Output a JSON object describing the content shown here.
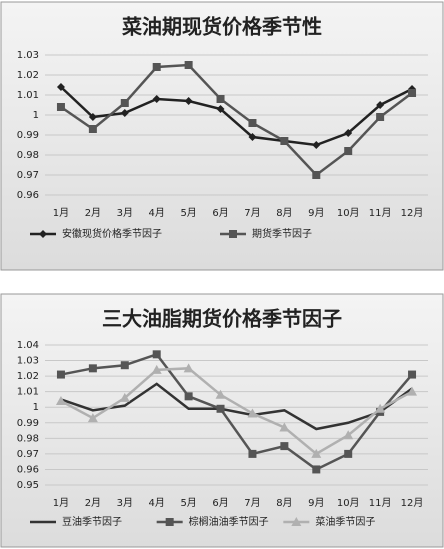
{
  "chart_data": [
    {
      "type": "line",
      "title": "菜油期现货价格季节性",
      "categories": [
        "1月",
        "2月",
        "3月",
        "4月",
        "5月",
        "6月",
        "7月",
        "8月",
        "9月",
        "10月",
        "11月",
        "12月"
      ],
      "ylim": [
        0.96,
        1.03
      ],
      "yticks": [
        0.96,
        0.97,
        0.98,
        0.99,
        1,
        1.01,
        1.02,
        1.03
      ],
      "grid": true,
      "series": [
        {
          "name": "安徽现货价格季节因子",
          "color": "#222222",
          "marker": "diamond",
          "values": [
            1.014,
            0.999,
            1.001,
            1.008,
            1.007,
            1.003,
            0.989,
            0.987,
            0.985,
            0.991,
            1.005,
            1.013
          ]
        },
        {
          "name": "期货季节因子",
          "color": "#555555",
          "marker": "square",
          "values": [
            1.004,
            0.993,
            1.006,
            1.024,
            1.025,
            1.008,
            0.996,
            0.987,
            0.97,
            0.982,
            0.999,
            1.011
          ]
        }
      ]
    },
    {
      "type": "line",
      "title": "三大油脂期货价格季节因子",
      "categories": [
        "1月",
        "2月",
        "3月",
        "4月",
        "5月",
        "6月",
        "7月",
        "8月",
        "9月",
        "10月",
        "11月",
        "12月"
      ],
      "ylim": [
        0.95,
        1.04
      ],
      "yticks": [
        0.95,
        0.96,
        0.97,
        0.98,
        0.99,
        1,
        1.01,
        1.02,
        1.03,
        1.04
      ],
      "grid": true,
      "series": [
        {
          "name": "豆油季节因子",
          "color": "#333333",
          "marker": "none",
          "values": [
            1.005,
            0.998,
            1.001,
            1.015,
            0.999,
            0.999,
            0.995,
            0.998,
            0.986,
            0.99,
            0.997,
            1.012
          ]
        },
        {
          "name": "棕榈油油季节因子",
          "color": "#555555",
          "marker": "square",
          "values": [
            1.021,
            1.025,
            1.027,
            1.034,
            1.007,
            0.999,
            0.97,
            0.975,
            0.96,
            0.97,
            0.997,
            1.021
          ]
        },
        {
          "name": "菜油季节因子",
          "color": "#b0b0b0",
          "marker": "triangle",
          "values": [
            1.004,
            0.993,
            1.006,
            1.024,
            1.025,
            1.008,
            0.996,
            0.987,
            0.97,
            0.982,
            0.999,
            1.01
          ]
        }
      ]
    }
  ]
}
